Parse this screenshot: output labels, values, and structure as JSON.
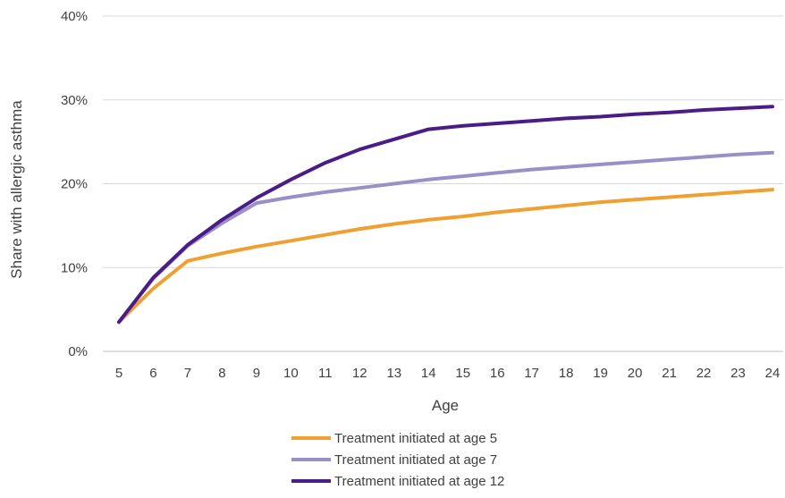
{
  "chart_data": {
    "type": "line",
    "xlabel": "Age",
    "ylabel": "Share with allergic asthma",
    "x": [
      5,
      6,
      7,
      8,
      9,
      10,
      11,
      12,
      13,
      14,
      15,
      16,
      17,
      18,
      19,
      20,
      21,
      22,
      23,
      24
    ],
    "ylim": [
      0,
      40
    ],
    "yticks": [
      "0%",
      "10%",
      "20%",
      "30%",
      "40%"
    ],
    "grid": "horizontal",
    "legend_position": "bottom",
    "series": [
      {
        "name": "Treatment initiated at age 5",
        "color": "#f0a030",
        "values": [
          3.5,
          7.5,
          10.8,
          11.7,
          12.5,
          13.2,
          13.9,
          14.6,
          15.2,
          15.7,
          16.1,
          16.6,
          17.0,
          17.4,
          17.8,
          18.1,
          18.4,
          18.7,
          19.0,
          19.3
        ]
      },
      {
        "name": "Treatment initiated at age 7",
        "color": "#9b8fc8",
        "values": [
          3.5,
          8.7,
          12.6,
          15.3,
          17.7,
          18.4,
          19.0,
          19.5,
          20.0,
          20.5,
          20.9,
          21.3,
          21.7,
          22.0,
          22.3,
          22.6,
          22.9,
          23.2,
          23.5,
          23.7
        ]
      },
      {
        "name": "Treatment initiated at age 12",
        "color": "#4a1c86",
        "values": [
          3.5,
          8.8,
          12.7,
          15.7,
          18.3,
          20.5,
          22.5,
          24.1,
          25.3,
          26.5,
          26.9,
          27.2,
          27.5,
          27.8,
          28.0,
          28.3,
          28.5,
          28.8,
          29.0,
          29.2
        ]
      }
    ]
  }
}
